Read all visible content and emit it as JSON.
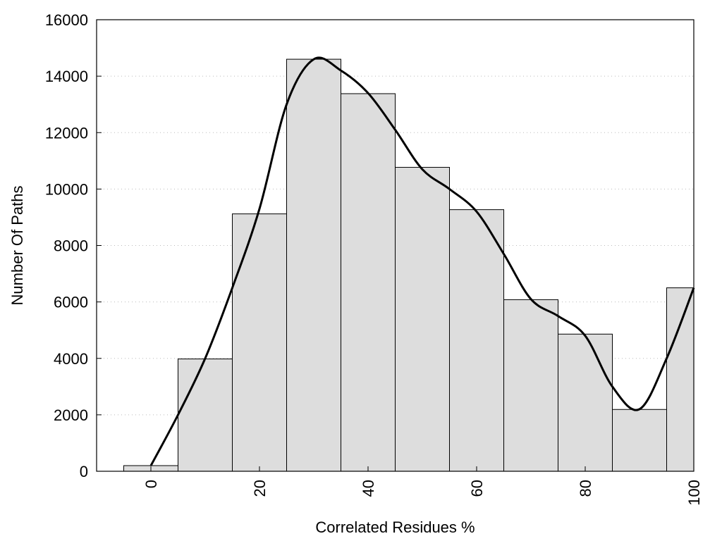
{
  "chart_data": {
    "type": "bar",
    "title": "",
    "xlabel": "Correlated Residues %",
    "ylabel": "Number Of Paths",
    "xlim": [
      -10,
      100
    ],
    "ylim": [
      0,
      16000
    ],
    "bin_width": 10,
    "x": [
      0,
      10,
      20,
      30,
      40,
      50,
      60,
      70,
      80,
      90,
      100
    ],
    "values": [
      200,
      3980,
      9120,
      14600,
      13380,
      10770,
      9270,
      6080,
      4860,
      2190,
      6500
    ],
    "x_ticks": [
      0,
      20,
      40,
      60,
      80,
      100
    ],
    "y_ticks": [
      0,
      2000,
      4000,
      6000,
      8000,
      10000,
      12000,
      14000,
      16000
    ],
    "grid": "horizontal dotted",
    "bar_color": "#dddddd",
    "curve": {
      "type": "smoothed-density",
      "points": [
        [
          0,
          200
        ],
        [
          5,
          2000
        ],
        [
          10,
          4000
        ],
        [
          15,
          6500
        ],
        [
          20,
          9300
        ],
        [
          25,
          13000
        ],
        [
          30,
          14600
        ],
        [
          35,
          14200
        ],
        [
          40,
          13400
        ],
        [
          45,
          12100
        ],
        [
          50,
          10700
        ],
        [
          55,
          10000
        ],
        [
          60,
          9200
        ],
        [
          65,
          7700
        ],
        [
          70,
          6100
        ],
        [
          75,
          5500
        ],
        [
          80,
          4800
        ],
        [
          85,
          3000
        ],
        [
          90,
          2200
        ],
        [
          95,
          4000
        ],
        [
          100,
          6500
        ]
      ]
    }
  }
}
